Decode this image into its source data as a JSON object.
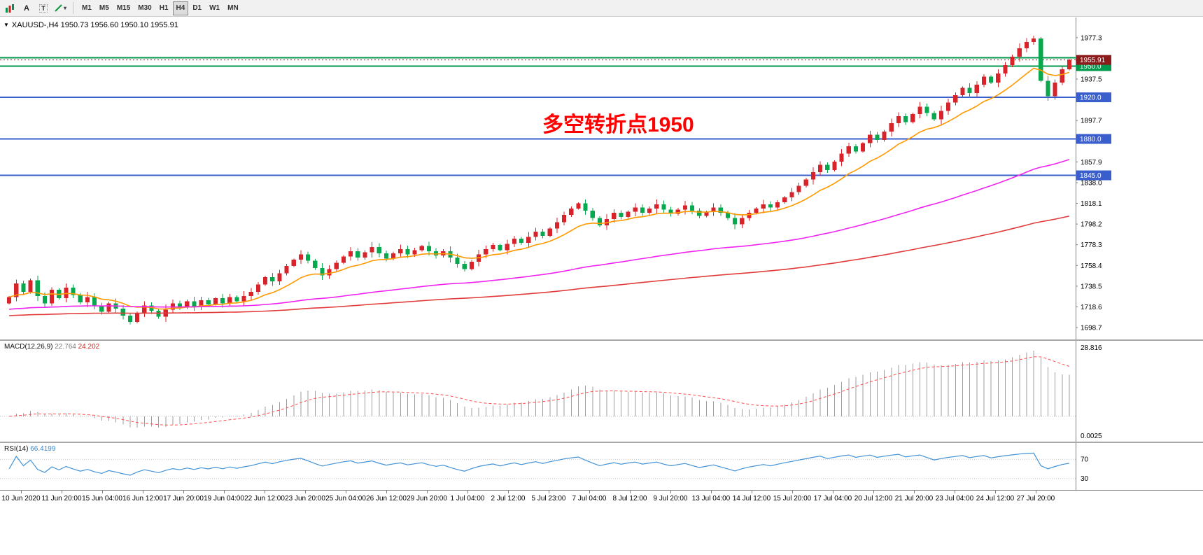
{
  "toolbar": {
    "tools": [
      {
        "id": "chart-bars",
        "label": ""
      },
      {
        "id": "insert-text",
        "label": "A"
      },
      {
        "id": "insert-label",
        "label": "T"
      },
      {
        "id": "insert-trendline",
        "label": ""
      }
    ],
    "timeframes": [
      "M1",
      "M5",
      "M15",
      "M30",
      "H1",
      "H4",
      "D1",
      "W1",
      "MN"
    ],
    "active_timeframe": "H4"
  },
  "chart": {
    "symbol_line": "XAUUSD-,H4  1950.73 1956.60 1950.10 1955.91",
    "annotation": {
      "text": "多空转折点1950",
      "color": "#ff0000"
    },
    "price_axis": {
      "labels": [
        "1977.3",
        "1957.4",
        "1937.5",
        "1917.6",
        "1897.7",
        "1877.8",
        "1857.9",
        "1838.0",
        "1818.1",
        "1798.2",
        "1778.3",
        "1758.4",
        "1738.5",
        "1718.6",
        "1698.7"
      ]
    },
    "badges": [
      {
        "text": "1950.0",
        "price": 1950.0,
        "color": "#009a4e"
      },
      {
        "text": "1920.0",
        "price": 1920.0,
        "color": "#3a5fcd"
      },
      {
        "text": "1880.0",
        "price": 1880.0,
        "color": "#3a5fcd"
      },
      {
        "text": "1845.0",
        "price": 1845.0,
        "color": "#3a5fcd"
      },
      {
        "text": "1955.91",
        "price": 1955.91,
        "color": "#8b1a1a"
      }
    ],
    "hlines": [
      {
        "price": 1958.0,
        "color": "#009a4e"
      },
      {
        "price": 1950.0,
        "color": "#009a4e"
      },
      {
        "price": 1920.0,
        "color": "#3a5fcd"
      },
      {
        "price": 1880.0,
        "color": "#3a5fcd"
      },
      {
        "price": 1845.0,
        "color": "#3a5fcd"
      }
    ]
  },
  "chart_data": {
    "type": "candlestick",
    "symbol": "XAUUSD-",
    "timeframe": "H4",
    "ohlc_current": {
      "open": 1950.73,
      "high": 1956.6,
      "low": 1950.1,
      "close": 1955.91
    },
    "y_range": [
      1692,
      1992
    ],
    "up_color": "#d8232a",
    "down_color": "#08a84e",
    "closes": [
      1728,
      1741,
      1733,
      1744,
      1729,
      1722,
      1735,
      1727,
      1737,
      1730,
      1723,
      1728,
      1720,
      1714,
      1722,
      1717,
      1710,
      1704,
      1713,
      1720,
      1715,
      1709,
      1716,
      1722,
      1718,
      1724,
      1719,
      1725,
      1721,
      1727,
      1722,
      1728,
      1724,
      1729,
      1733,
      1740,
      1747,
      1743,
      1751,
      1758,
      1764,
      1769,
      1763,
      1756,
      1749,
      1755,
      1761,
      1767,
      1772,
      1766,
      1771,
      1776,
      1770,
      1765,
      1770,
      1774,
      1769,
      1773,
      1777,
      1772,
      1768,
      1772,
      1766,
      1760,
      1755,
      1762,
      1769,
      1774,
      1778,
      1773,
      1779,
      1784,
      1780,
      1786,
      1791,
      1787,
      1794,
      1800,
      1807,
      1813,
      1818,
      1811,
      1804,
      1797,
      1803,
      1809,
      1805,
      1810,
      1814,
      1809,
      1813,
      1817,
      1812,
      1808,
      1812,
      1816,
      1811,
      1806,
      1810,
      1814,
      1809,
      1804,
      1798,
      1804,
      1809,
      1813,
      1817,
      1814,
      1819,
      1824,
      1829,
      1835,
      1841,
      1848,
      1855,
      1850,
      1858,
      1866,
      1873,
      1868,
      1876,
      1884,
      1879,
      1887,
      1895,
      1902,
      1896,
      1904,
      1911,
      1905,
      1899,
      1907,
      1915,
      1922,
      1929,
      1924,
      1932,
      1940,
      1934,
      1943,
      1951,
      1959,
      1967,
      1973,
      1976.5,
      1936,
      1921,
      1934,
      1947,
      1955.91
    ],
    "ma": [
      {
        "name": "fast",
        "period": 12,
        "seed_offset": 0,
        "color": "#ff9900"
      },
      {
        "name": "medium",
        "period": 90,
        "seed_offset": -12,
        "color": "#f024f0"
      },
      {
        "name": "slow",
        "period": 200,
        "seed_offset": -18,
        "color": "#e23b3b"
      }
    ],
    "x_labels": [
      "10 Jun 2020",
      "11 Jun 20:00",
      "15 Jun 04:00",
      "16 Jun 12:00",
      "17 Jun 20:00",
      "19 Jun 04:00",
      "22 Jun 12:00",
      "23 Jun 20:00",
      "25 Jun 04:00",
      "26 Jun 12:00",
      "29 Jun 20:00",
      "1 Jul 04:00",
      "2 Jul 12:00",
      "5 Jul 23:00",
      "7 Jul 04:00",
      "8 Jul 12:00",
      "9 Jul 20:00",
      "13 Jul 04:00",
      "14 Jul 12:00",
      "15 Jul 20:00",
      "17 Jul 04:00",
      "20 Jul 12:00",
      "21 Jul 20:00",
      "23 Jul 04:00",
      "24 Jul 12:00",
      "27 Jul 20:00"
    ]
  },
  "macd": {
    "title": "MACD(12,26,9)",
    "value_main": "22.764",
    "value_signal": "24.202",
    "axis_top": "28.816",
    "axis_bottom": "0.0025",
    "histogram_color": "#9e9e9e",
    "signal_color": "#ff4d4d"
  },
  "rsi": {
    "title": "RSI(14)",
    "value": "66.4199",
    "period": 14,
    "levels": [
      70,
      30
    ],
    "line_color": "#4292d6"
  }
}
